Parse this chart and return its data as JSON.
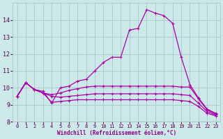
{
  "xlabel": "Windchill (Refroidissement éolien,°C)",
  "background_color": "#cce8e8",
  "grid_color": "#aacccc",
  "line_color": "#aa00aa",
  "xlabel_color": "#880088",
  "xlim": [
    -0.5,
    23.5
  ],
  "ylim": [
    8.0,
    15.0
  ],
  "yticks": [
    8,
    9,
    10,
    11,
    12,
    13,
    14
  ],
  "xticks": [
    0,
    1,
    2,
    3,
    4,
    5,
    6,
    7,
    8,
    9,
    10,
    11,
    12,
    13,
    14,
    15,
    16,
    17,
    18,
    19,
    20,
    21,
    22,
    23
  ],
  "series": [
    [
      9.5,
      10.3,
      9.9,
      9.8,
      9.1,
      10.0,
      10.1,
      10.4,
      10.5,
      11.0,
      11.5,
      11.8,
      11.8,
      13.4,
      13.5,
      14.6,
      14.4,
      14.25,
      13.8,
      11.8,
      10.2,
      9.4,
      8.75,
      8.5
    ],
    [
      9.5,
      10.3,
      9.9,
      9.7,
      9.6,
      9.7,
      9.85,
      9.95,
      10.05,
      10.1,
      10.1,
      10.1,
      10.1,
      10.1,
      10.1,
      10.1,
      10.1,
      10.1,
      10.1,
      10.05,
      10.05,
      9.35,
      8.7,
      8.45
    ],
    [
      9.5,
      10.3,
      9.9,
      9.7,
      9.5,
      9.45,
      9.5,
      9.55,
      9.6,
      9.65,
      9.65,
      9.65,
      9.65,
      9.65,
      9.65,
      9.65,
      9.65,
      9.65,
      9.65,
      9.6,
      9.55,
      9.1,
      8.6,
      8.4
    ],
    [
      9.5,
      10.3,
      9.9,
      9.7,
      9.15,
      9.2,
      9.25,
      9.3,
      9.3,
      9.3,
      9.3,
      9.3,
      9.3,
      9.3,
      9.3,
      9.3,
      9.3,
      9.3,
      9.3,
      9.25,
      9.2,
      8.9,
      8.5,
      8.35
    ]
  ]
}
